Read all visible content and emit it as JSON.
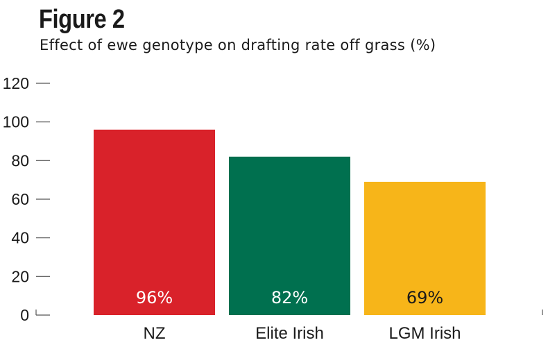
{
  "figure": {
    "title": "Figure 2",
    "subtitle": "Effect of ewe genotype on drafting rate off grass (%)"
  },
  "chart_data": {
    "type": "bar",
    "title": "Figure 2",
    "subtitle": "Effect of ewe genotype on drafting rate off grass (%)",
    "categories": [
      "NZ",
      "Elite Irish",
      "LGM Irish"
    ],
    "values": [
      96,
      82,
      69
    ],
    "data_labels": [
      "96%",
      "82%",
      "69%"
    ],
    "bar_colors": [
      "#d9222a",
      "#00704f",
      "#f7b519"
    ],
    "data_label_colors": [
      "#ffffff",
      "#ffffff",
      "#1a1a1a"
    ],
    "xlabel": "",
    "ylabel": "",
    "ylim": [
      0,
      120
    ],
    "yticks": [
      0,
      20,
      40,
      60,
      80,
      100,
      120
    ],
    "grid": false,
    "legend": "none"
  }
}
